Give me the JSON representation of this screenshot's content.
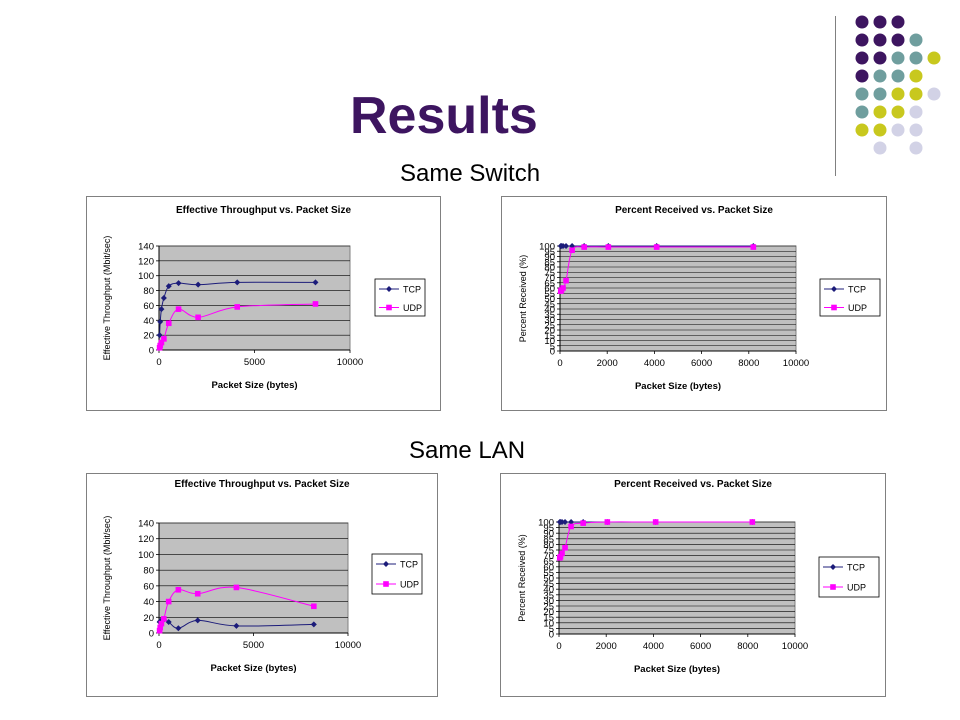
{
  "slide": {
    "title": "Results",
    "section1_label": "Same Switch",
    "section2_label": "Same LAN"
  },
  "decor": {
    "dot_colors": {
      "purple": "#3d1560",
      "teal": "#6f9e9e",
      "yellow": "#c8c81e",
      "lavender": "#d2d2e6"
    },
    "dot_grid": [
      [
        "purple",
        "purple",
        "purple",
        null,
        null
      ],
      [
        "purple",
        "purple",
        "purple",
        "teal",
        null
      ],
      [
        "purple",
        "purple",
        "teal",
        "teal",
        "yellow"
      ],
      [
        "purple",
        "teal",
        "teal",
        "yellow",
        null
      ],
      [
        "teal",
        "teal",
        "yellow",
        "yellow",
        "lavender"
      ],
      [
        "teal",
        "yellow",
        "yellow",
        "lavender",
        null
      ],
      [
        "yellow",
        "yellow",
        "lavender",
        "lavender",
        null
      ],
      [
        null,
        "lavender",
        null,
        "lavender",
        null
      ]
    ]
  },
  "colors": {
    "plot_bg": "#c0c0c0",
    "tcp": "#1c1c7a",
    "udp": "#ff00ff",
    "grid": "#000000"
  },
  "chart_data": [
    {
      "id": "switch-throughput",
      "type": "line",
      "title": "Effective Throughput vs. Packet Size",
      "xlabel": "Packet Size (bytes)",
      "ylabel": "Effective Throughput (Mbit/sec)",
      "xlim": [
        0,
        10000
      ],
      "ylim": [
        0,
        140
      ],
      "xticks": [
        0,
        5000,
        10000
      ],
      "yticks": [
        0,
        20,
        40,
        60,
        80,
        100,
        120,
        140
      ],
      "legend": "right",
      "grid": true,
      "series": [
        {
          "name": "TCP",
          "x": [
            32,
            64,
            128,
            256,
            512,
            1024,
            2048,
            4096,
            8192
          ],
          "y": [
            20,
            38,
            55,
            70,
            86,
            90,
            88,
            91,
            91
          ]
        },
        {
          "name": "UDP",
          "x": [
            32,
            64,
            128,
            256,
            512,
            1024,
            2048,
            4096,
            8192
          ],
          "y": [
            3,
            6,
            10,
            15,
            36,
            55,
            44,
            58,
            62
          ]
        }
      ]
    },
    {
      "id": "switch-received",
      "type": "line",
      "title": "Percent Received vs. Packet Size",
      "xlabel": "Packet Size (bytes)",
      "ylabel": "Percent Received (%)",
      "xlim": [
        0,
        10000
      ],
      "ylim": [
        0,
        100
      ],
      "xticks": [
        0,
        2000,
        4000,
        6000,
        8000,
        10000
      ],
      "yticks": [
        0,
        5,
        10,
        15,
        20,
        25,
        30,
        35,
        40,
        45,
        50,
        55,
        60,
        65,
        70,
        75,
        80,
        85,
        90,
        95,
        100
      ],
      "legend": "right",
      "grid": true,
      "series": [
        {
          "name": "TCP",
          "x": [
            32,
            64,
            128,
            256,
            512,
            1024,
            2048,
            4096,
            8192
          ],
          "y": [
            100,
            100,
            100,
            100,
            100,
            100,
            100,
            100,
            100
          ]
        },
        {
          "name": "UDP",
          "x": [
            32,
            64,
            128,
            256,
            512,
            1024,
            2048,
            4096,
            8192
          ],
          "y": [
            57,
            58,
            60,
            67,
            96,
            99,
            99,
            99,
            99
          ]
        }
      ]
    },
    {
      "id": "lan-throughput",
      "type": "line",
      "title": "Effective Throughput vs. Packet Size",
      "xlabel": "Packet Size (bytes)",
      "ylabel": "Effective Throughput (Mbit/sec)",
      "xlim": [
        0,
        10000
      ],
      "ylim": [
        0,
        140
      ],
      "xticks": [
        0,
        5000,
        10000
      ],
      "yticks": [
        0,
        20,
        40,
        60,
        80,
        100,
        120,
        140
      ],
      "legend": "right",
      "grid": true,
      "series": [
        {
          "name": "TCP",
          "x": [
            32,
            64,
            128,
            256,
            512,
            1024,
            2048,
            4096,
            8192
          ],
          "y": [
            14,
            15,
            16,
            17,
            14,
            6,
            16,
            9,
            11
          ]
        },
        {
          "name": "UDP",
          "x": [
            32,
            64,
            128,
            256,
            512,
            1024,
            2048,
            4096,
            8192
          ],
          "y": [
            3,
            7,
            12,
            18,
            40,
            55,
            50,
            58,
            34
          ]
        }
      ]
    },
    {
      "id": "lan-received",
      "type": "line",
      "title": "Percent Received vs. Packet Size",
      "xlabel": "Packet Size (bytes)",
      "ylabel": "Percent Received (%)",
      "xlim": [
        0,
        10000
      ],
      "ylim": [
        0,
        100
      ],
      "xticks": [
        0,
        2000,
        4000,
        6000,
        8000,
        10000
      ],
      "yticks": [
        0,
        5,
        10,
        15,
        20,
        25,
        30,
        35,
        40,
        45,
        50,
        55,
        60,
        65,
        70,
        75,
        80,
        85,
        90,
        95,
        100
      ],
      "legend": "right",
      "grid": true,
      "series": [
        {
          "name": "TCP",
          "x": [
            32,
            64,
            128,
            256,
            512,
            1024,
            2048,
            4096,
            8192
          ],
          "y": [
            100,
            100,
            100,
            100,
            100,
            100,
            100,
            100,
            100
          ]
        },
        {
          "name": "UDP",
          "x": [
            32,
            64,
            128,
            256,
            512,
            1024,
            2048,
            4096,
            8192
          ],
          "y": [
            68,
            69,
            72,
            77,
            96,
            99,
            100,
            100,
            100
          ]
        }
      ]
    }
  ]
}
